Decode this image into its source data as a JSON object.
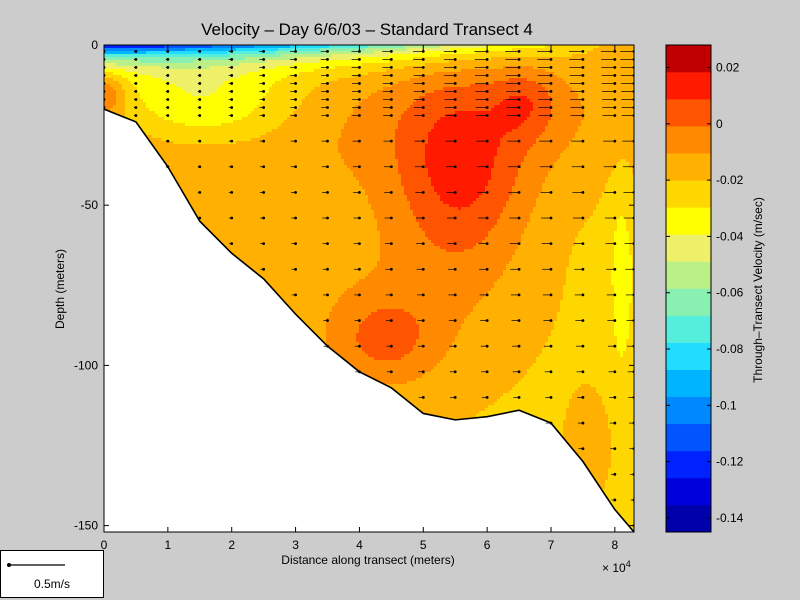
{
  "chart_data": {
    "type": "heatmap",
    "title": "Velocity – Day 6/6/03 – Standard Transect 4",
    "xlabel": "Distance along transect (meters)",
    "ylabel": "Depth (meters)",
    "x_multiplier_label": "× 10",
    "x_multiplier_exp": "4",
    "xlim": [
      0,
      8.3
    ],
    "ylim": [
      -152,
      0
    ],
    "x_ticks": [
      "0",
      "1",
      "2",
      "3",
      "4",
      "5",
      "6",
      "7",
      "8"
    ],
    "y_ticks": [
      "0",
      "-50",
      "-100",
      "-150"
    ],
    "colorbar": {
      "label": "Through–Transect Velocity (m/sec)",
      "range": [
        -0.145,
        0.028
      ],
      "ticks": [
        "0.02",
        "0",
        "-0.02",
        "-0.04",
        "-0.06",
        "-0.08",
        "-0.1",
        "-0.12",
        "-0.14"
      ],
      "tick_values": [
        0.02,
        0,
        -0.02,
        -0.04,
        -0.06,
        -0.08,
        -0.1,
        -0.12,
        -0.14
      ],
      "colors": [
        "#0000aa",
        "#0000dd",
        "#0022ff",
        "#0055ff",
        "#0088ff",
        "#00b4ff",
        "#22ddff",
        "#55eedd",
        "#88f0b0",
        "#bbf088",
        "#eef06a",
        "#ffff00",
        "#ffd700",
        "#ffb000",
        "#ff8a00",
        "#ff5500",
        "#ff1a00",
        "#c00000"
      ]
    },
    "bottom_profile": {
      "x": [
        0,
        0.5,
        1.0,
        1.5,
        2.0,
        2.5,
        3.0,
        3.5,
        4.0,
        4.5,
        5.0,
        5.5,
        6.0,
        6.5,
        7.0,
        7.5,
        8.0,
        8.3
      ],
      "depth": [
        -20,
        -24,
        -38,
        -55,
        -65,
        -73,
        -84,
        -94,
        -102,
        -107,
        -115,
        -117,
        -116,
        -114,
        -118,
        -130,
        -145,
        -152
      ]
    },
    "station_x": [
      0,
      0.5,
      1.0,
      1.5,
      2.0,
      2.5,
      3.0,
      3.5,
      4.0,
      4.5,
      5.0,
      5.5,
      6.0,
      6.5,
      7.0,
      7.5,
      8.0,
      8.3
    ],
    "vector_scale_label": "0.5m/s"
  }
}
